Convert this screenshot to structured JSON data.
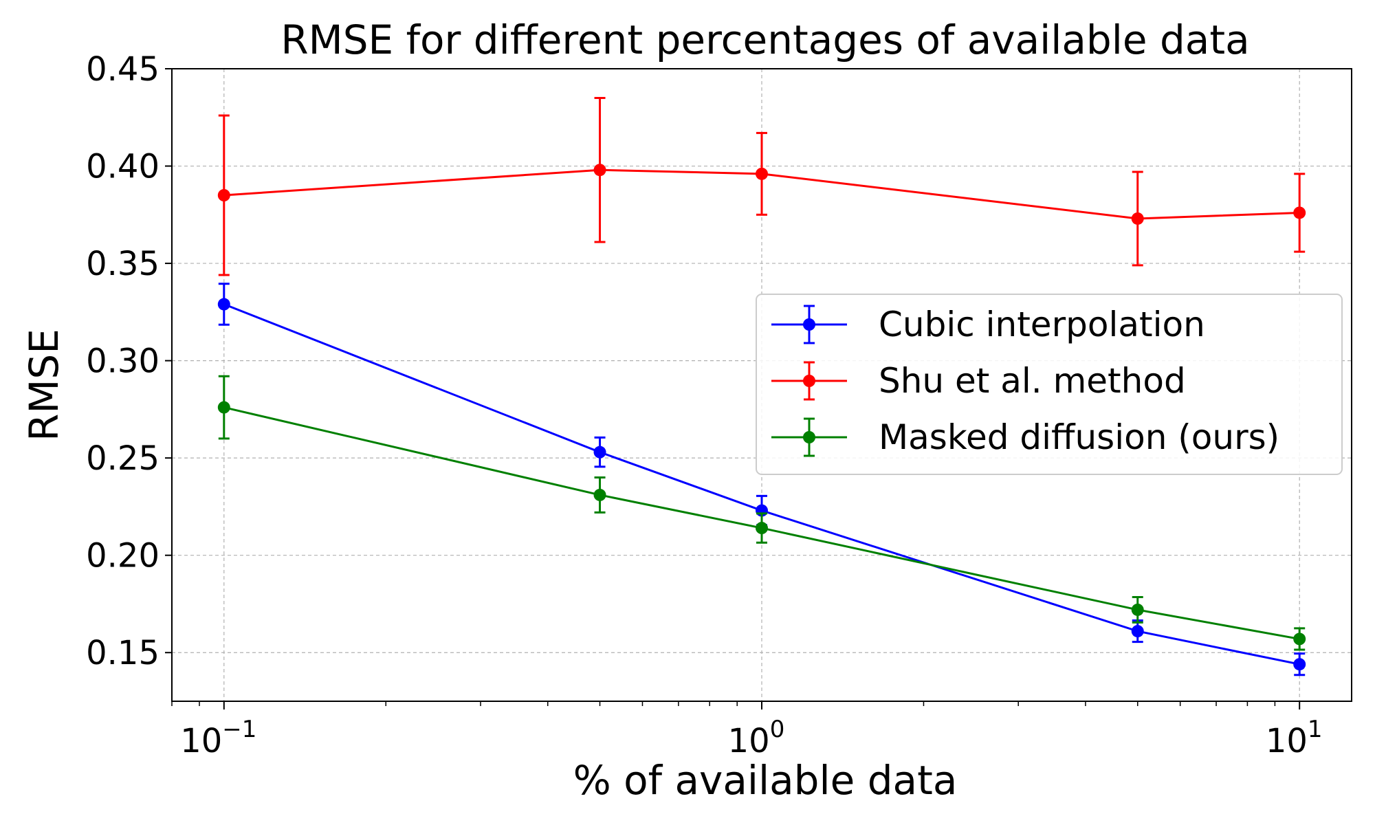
{
  "chart_data": {
    "type": "line",
    "title": "RMSE for different percentages of available data",
    "xlabel": "% of available data",
    "ylabel": "RMSE",
    "xscale": "log",
    "xlim": [
      0.08,
      12.5
    ],
    "ylim": [
      0.125,
      0.45
    ],
    "x_ticks": [
      {
        "value": 0.1,
        "base": "10",
        "exp": "−1"
      },
      {
        "value": 1,
        "base": "10",
        "exp": "0"
      },
      {
        "value": 10,
        "base": "10",
        "exp": "1"
      }
    ],
    "y_ticks": [
      "0.15",
      "0.20",
      "0.25",
      "0.30",
      "0.35",
      "0.40",
      "0.45"
    ],
    "grid": true,
    "legend_position": "center-right",
    "series": [
      {
        "name": "Cubic interpolation",
        "color": "#0000ff",
        "x": [
          0.1,
          0.5,
          1,
          5,
          10
        ],
        "y": [
          0.329,
          0.253,
          0.223,
          0.161,
          0.144
        ],
        "err": [
          0.0105,
          0.0075,
          0.0075,
          0.0055,
          0.0055
        ]
      },
      {
        "name": "Shu et al. method",
        "color": "#ff0000",
        "x": [
          0.1,
          0.5,
          1,
          5,
          10
        ],
        "y": [
          0.385,
          0.398,
          0.396,
          0.373,
          0.376
        ],
        "err": [
          0.041,
          0.037,
          0.021,
          0.024,
          0.02
        ]
      },
      {
        "name": "Masked diffusion (ours)",
        "color": "#008000",
        "x": [
          0.1,
          0.5,
          1,
          5,
          10
        ],
        "y": [
          0.276,
          0.231,
          0.214,
          0.172,
          0.157
        ],
        "err": [
          0.016,
          0.009,
          0.0075,
          0.0065,
          0.0055
        ]
      }
    ]
  }
}
